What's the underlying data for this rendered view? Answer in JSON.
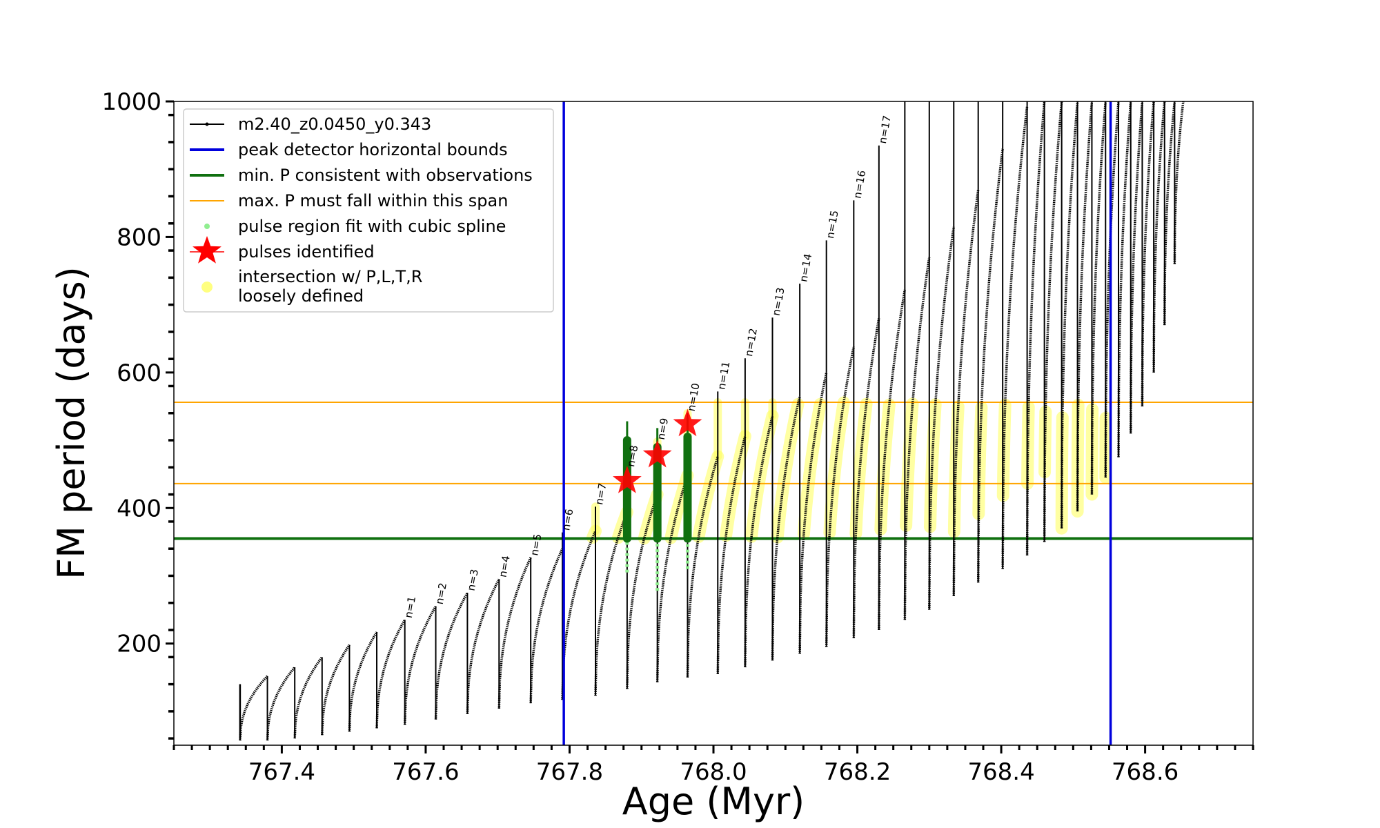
{
  "chart_data": {
    "type": "line",
    "title": "",
    "xlabel": "Age (Myr)",
    "ylabel": "FM period (days)",
    "xlim": [
      767.25,
      768.75
    ],
    "ylim": [
      50,
      1000
    ],
    "xticks": [
      767.4,
      767.6,
      767.8,
      768.0,
      768.2,
      768.4,
      768.6
    ],
    "xtick_labels": [
      "767.4",
      "767.6",
      "767.8",
      "768.0",
      "768.2",
      "768.4",
      "768.6"
    ],
    "yticks": [
      200,
      400,
      600,
      800,
      1000
    ],
    "ytick_labels": [
      "200",
      "400",
      "600",
      "800",
      "1000"
    ],
    "grid": false,
    "legend_position": "top-left",
    "legend": [
      {
        "label": "m2.40_z0.0450_y0.343",
        "style": "line-dots",
        "color": "#000000"
      },
      {
        "label": "peak detector horizontal bounds",
        "style": "line",
        "color": "#0000dd"
      },
      {
        "label": "min. P consistent with observations",
        "style": "line",
        "color": "#107010"
      },
      {
        "label": "max. P must fall within this span",
        "style": "thin-line",
        "color": "#ffa500"
      },
      {
        "label": "pulse region fit with cubic spline",
        "style": "dot",
        "color": "#90ee90"
      },
      {
        "label": "pulses identified",
        "style": "star",
        "color": "#ff0000"
      },
      {
        "label": "intersection w/ P,L,T,R\nloosely defined",
        "style": "dot",
        "color": "#ffff80"
      }
    ],
    "vertical_lines": {
      "color": "#0000dd",
      "x": [
        767.792,
        768.552
      ]
    },
    "min_period_line": {
      "color": "#107010",
      "y": 355
    },
    "max_period_span": {
      "color": "#ffa500",
      "y": [
        436,
        556
      ]
    },
    "pulses": [
      {
        "t_end": 767.342,
        "p_start": 60,
        "p_end": 140,
        "spike": null,
        "label": ""
      },
      {
        "t_end": 767.38,
        "p_start": 57,
        "p_end": 152,
        "spike": null,
        "label": ""
      },
      {
        "t_end": 767.418,
        "p_start": 57,
        "p_end": 165,
        "spike": null,
        "label": ""
      },
      {
        "t_end": 767.456,
        "p_start": 60,
        "p_end": 180,
        "spike": null,
        "label": ""
      },
      {
        "t_end": 767.494,
        "p_start": 65,
        "p_end": 198,
        "spike": null,
        "label": ""
      },
      {
        "t_end": 767.532,
        "p_start": 70,
        "p_end": 217,
        "spike": null,
        "label": ""
      },
      {
        "t_end": 767.571,
        "p_start": 75,
        "p_end": 235,
        "spike": null,
        "label": "n=1"
      },
      {
        "t_end": 767.614,
        "p_start": 80,
        "p_end": 255,
        "spike": null,
        "label": "n=2"
      },
      {
        "t_end": 767.658,
        "p_start": 88,
        "p_end": 275,
        "spike": null,
        "label": "n=3"
      },
      {
        "t_end": 767.702,
        "p_start": 96,
        "p_end": 295,
        "spike": null,
        "label": "n=4"
      },
      {
        "t_end": 767.746,
        "p_start": 104,
        "p_end": 327,
        "spike": null,
        "label": "n=5"
      },
      {
        "t_end": 767.79,
        "p_start": 112,
        "p_end": 340,
        "spike": 364,
        "label": "n=6"
      },
      {
        "t_end": 767.836,
        "p_start": 117,
        "p_end": 366,
        "spike": 402,
        "label": "n=7"
      },
      {
        "t_end": 767.88,
        "p_start": 123,
        "p_end": 394,
        "spike": 458,
        "label": "n=8"
      },
      {
        "t_end": 767.922,
        "p_start": 133,
        "p_end": 420,
        "spike": 498,
        "label": "n=9"
      },
      {
        "t_end": 767.964,
        "p_start": 143,
        "p_end": 448,
        "spike": 540,
        "label": "n=10"
      },
      {
        "t_end": 768.006,
        "p_start": 150,
        "p_end": 476,
        "spike": 572,
        "label": "n=11"
      },
      {
        "t_end": 768.044,
        "p_start": 155,
        "p_end": 506,
        "spike": 621,
        "label": "n=12"
      },
      {
        "t_end": 768.082,
        "p_start": 165,
        "p_end": 536,
        "spike": 681,
        "label": "n=13"
      },
      {
        "t_end": 768.12,
        "p_start": 175,
        "p_end": 565,
        "spike": 731,
        "label": "n=14"
      },
      {
        "t_end": 768.157,
        "p_start": 185,
        "p_end": 600,
        "spike": 795,
        "label": "n=15"
      },
      {
        "t_end": 768.195,
        "p_start": 195,
        "p_end": 638,
        "spike": 854,
        "label": "n=16"
      },
      {
        "t_end": 768.23,
        "p_start": 208,
        "p_end": 680,
        "spike": 935,
        "label": "n=17"
      },
      {
        "t_end": 768.266,
        "p_start": 220,
        "p_end": 722,
        "spike": 1000,
        "label": ""
      },
      {
        "t_end": 768.3,
        "p_start": 235,
        "p_end": 770,
        "spike": 1000,
        "label": ""
      },
      {
        "t_end": 768.334,
        "p_start": 250,
        "p_end": 815,
        "spike": 1000,
        "label": ""
      },
      {
        "t_end": 768.368,
        "p_start": 270,
        "p_end": 870,
        "spike": 1000,
        "label": ""
      },
      {
        "t_end": 768.402,
        "p_start": 290,
        "p_end": 930,
        "spike": 1000,
        "label": ""
      },
      {
        "t_end": 768.436,
        "p_start": 310,
        "p_end": 993,
        "spike": 1000,
        "label": ""
      },
      {
        "t_end": 768.46,
        "p_start": 330,
        "p_end": 1000,
        "spike": 1000,
        "label": ""
      },
      {
        "t_end": 768.484,
        "p_start": 350,
        "p_end": 1000,
        "spike": 1000,
        "label": ""
      },
      {
        "t_end": 768.506,
        "p_start": 370,
        "p_end": 1000,
        "spike": 1000,
        "label": ""
      },
      {
        "t_end": 768.526,
        "p_start": 395,
        "p_end": 1000,
        "spike": 1000,
        "label": ""
      },
      {
        "t_end": 768.545,
        "p_start": 420,
        "p_end": 1000,
        "spike": 1000,
        "label": ""
      },
      {
        "t_end": 768.563,
        "p_start": 445,
        "p_end": 1000,
        "spike": 1000,
        "label": ""
      },
      {
        "t_end": 768.58,
        "p_start": 475,
        "p_end": 1000,
        "spike": 1000,
        "label": ""
      },
      {
        "t_end": 768.596,
        "p_start": 510,
        "p_end": 1000,
        "spike": 1000,
        "label": ""
      },
      {
        "t_end": 768.612,
        "p_start": 550,
        "p_end": 1000,
        "spike": 1000,
        "label": ""
      },
      {
        "t_end": 768.627,
        "p_start": 600,
        "p_end": 1000,
        "spike": 1000,
        "label": ""
      },
      {
        "t_end": 768.641,
        "p_start": 670,
        "p_end": 1000,
        "spike": 1000,
        "label": ""
      },
      {
        "t_end": 768.653,
        "p_start": 760,
        "p_end": 1000,
        "spike": 1000,
        "label": ""
      }
    ],
    "spline_fits": [
      {
        "t": 767.88,
        "p": [
          305,
          500
        ]
      },
      {
        "t": 767.922,
        "p": [
          278,
          490
        ]
      },
      {
        "t": 767.964,
        "p": [
          310,
          505
        ]
      }
    ],
    "pulses_identified": [
      {
        "t": 767.88,
        "p": 440
      },
      {
        "t": 767.922,
        "p": 478
      },
      {
        "t": 767.964,
        "p": 524
      }
    ]
  }
}
